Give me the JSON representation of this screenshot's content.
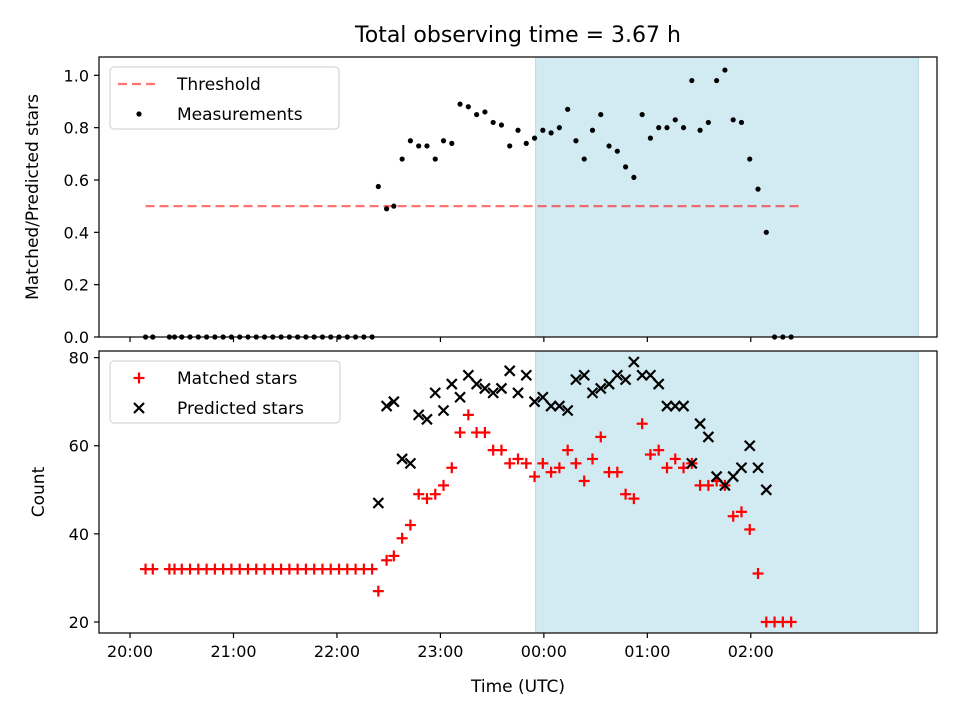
{
  "title": "Total observing time = 3.67 h",
  "xlabel": "Time (UTC)",
  "colors": {
    "band": "#add8e6",
    "threshold": "#ff0000",
    "measurements": "#000000",
    "matched": "#ff0000",
    "predicted": "#000000"
  },
  "chart_data": [
    {
      "type": "scatter",
      "ylabel": "Matched/Predicted stars",
      "ylim": [
        0.0,
        1.07
      ],
      "xlim": [
        -0.3,
        7.8
      ],
      "yticks": [
        0.0,
        0.2,
        0.4,
        0.6,
        0.8,
        1.0
      ],
      "ytick_labels": [
        "0.0",
        "0.2",
        "0.4",
        "0.6",
        "0.8",
        "1.0"
      ],
      "legend": {
        "placement": "upper-left",
        "entries": [
          "Threshold",
          "Measurements"
        ]
      },
      "shaded_band": [
        3.92,
        7.62
      ],
      "threshold": {
        "name": "Threshold",
        "value": 0.5,
        "x_range": [
          0.15,
          6.5
        ]
      },
      "series": [
        {
          "name": "Measurements",
          "points": [
            [
              0.15,
              0
            ],
            [
              0.22,
              0
            ],
            [
              0.38,
              0
            ],
            [
              0.43,
              0
            ],
            [
              0.5,
              0
            ],
            [
              0.58,
              0
            ],
            [
              0.66,
              0
            ],
            [
              0.74,
              0
            ],
            [
              0.82,
              0
            ],
            [
              0.9,
              0
            ],
            [
              0.98,
              0
            ],
            [
              1.06,
              0
            ],
            [
              1.14,
              0
            ],
            [
              1.22,
              0
            ],
            [
              1.3,
              0
            ],
            [
              1.38,
              0
            ],
            [
              1.46,
              0
            ],
            [
              1.54,
              0
            ],
            [
              1.62,
              0
            ],
            [
              1.7,
              0
            ],
            [
              1.78,
              0
            ],
            [
              1.86,
              0
            ],
            [
              1.94,
              0
            ],
            [
              2.02,
              0
            ],
            [
              2.1,
              0
            ],
            [
              2.18,
              0
            ],
            [
              2.26,
              0
            ],
            [
              2.34,
              0
            ],
            [
              2.4,
              0.575
            ],
            [
              2.48,
              0.49
            ],
            [
              2.55,
              0.5
            ],
            [
              2.63,
              0.68
            ],
            [
              2.71,
              0.75
            ],
            [
              2.79,
              0.73
            ],
            [
              2.87,
              0.73
            ],
            [
              2.95,
              0.68
            ],
            [
              3.03,
              0.75
            ],
            [
              3.11,
              0.74
            ],
            [
              3.19,
              0.89
            ],
            [
              3.27,
              0.88
            ],
            [
              3.35,
              0.85
            ],
            [
              3.43,
              0.86
            ],
            [
              3.51,
              0.82
            ],
            [
              3.59,
              0.81
            ],
            [
              3.67,
              0.73
            ],
            [
              3.75,
              0.79
            ],
            [
              3.83,
              0.74
            ],
            [
              3.91,
              0.76
            ],
            [
              3.99,
              0.79
            ],
            [
              4.07,
              0.78
            ],
            [
              4.15,
              0.8
            ],
            [
              4.23,
              0.87
            ],
            [
              4.31,
              0.75
            ],
            [
              4.39,
              0.68
            ],
            [
              4.47,
              0.79
            ],
            [
              4.55,
              0.85
            ],
            [
              4.63,
              0.73
            ],
            [
              4.71,
              0.71
            ],
            [
              4.79,
              0.65
            ],
            [
              4.87,
              0.61
            ],
            [
              4.95,
              0.85
            ],
            [
              5.03,
              0.76
            ],
            [
              5.11,
              0.8
            ],
            [
              5.19,
              0.8
            ],
            [
              5.27,
              0.83
            ],
            [
              5.35,
              0.8
            ],
            [
              5.43,
              0.98
            ],
            [
              5.51,
              0.79
            ],
            [
              5.59,
              0.82
            ],
            [
              5.67,
              0.98
            ],
            [
              5.75,
              1.02
            ],
            [
              5.83,
              0.83
            ],
            [
              5.91,
              0.82
            ],
            [
              5.99,
              0.68
            ],
            [
              6.07,
              0.565
            ],
            [
              6.15,
              0.4
            ],
            [
              6.23,
              0
            ],
            [
              6.31,
              0
            ],
            [
              6.39,
              0
            ]
          ]
        }
      ]
    },
    {
      "type": "scatter",
      "ylabel": "Count",
      "ylim": [
        17.5,
        81.5
      ],
      "xlim": [
        -0.3,
        7.8
      ],
      "yticks": [
        20,
        40,
        60,
        80
      ],
      "ytick_labels": [
        "20",
        "40",
        "60",
        "80"
      ],
      "xticks": [
        0,
        1,
        2,
        3,
        4,
        5,
        6
      ],
      "xtick_labels": [
        "20:00",
        "21:00",
        "22:00",
        "23:00",
        "00:00",
        "01:00",
        "02:00"
      ],
      "legend": {
        "placement": "upper-left",
        "entries": [
          "Matched stars",
          "Predicted stars"
        ]
      },
      "shaded_band": [
        3.92,
        7.62
      ],
      "series": [
        {
          "name": "Matched stars",
          "marker": "plus",
          "points": [
            [
              0.15,
              32
            ],
            [
              0.22,
              32
            ],
            [
              0.38,
              32
            ],
            [
              0.43,
              32
            ],
            [
              0.5,
              32
            ],
            [
              0.58,
              32
            ],
            [
              0.66,
              32
            ],
            [
              0.74,
              32
            ],
            [
              0.82,
              32
            ],
            [
              0.9,
              32
            ],
            [
              0.98,
              32
            ],
            [
              1.06,
              32
            ],
            [
              1.14,
              32
            ],
            [
              1.22,
              32
            ],
            [
              1.3,
              32
            ],
            [
              1.38,
              32
            ],
            [
              1.46,
              32
            ],
            [
              1.54,
              32
            ],
            [
              1.62,
              32
            ],
            [
              1.7,
              32
            ],
            [
              1.78,
              32
            ],
            [
              1.86,
              32
            ],
            [
              1.94,
              32
            ],
            [
              2.02,
              32
            ],
            [
              2.1,
              32
            ],
            [
              2.18,
              32
            ],
            [
              2.26,
              32
            ],
            [
              2.34,
              32
            ],
            [
              2.4,
              27
            ],
            [
              2.48,
              34
            ],
            [
              2.55,
              35
            ],
            [
              2.63,
              39
            ],
            [
              2.71,
              42
            ],
            [
              2.79,
              49
            ],
            [
              2.87,
              48
            ],
            [
              2.95,
              49
            ],
            [
              3.03,
              51
            ],
            [
              3.11,
              55
            ],
            [
              3.19,
              63
            ],
            [
              3.27,
              67
            ],
            [
              3.35,
              63
            ],
            [
              3.43,
              63
            ],
            [
              3.51,
              59
            ],
            [
              3.59,
              59
            ],
            [
              3.67,
              56
            ],
            [
              3.75,
              57
            ],
            [
              3.83,
              56
            ],
            [
              3.91,
              53
            ],
            [
              3.99,
              56
            ],
            [
              4.07,
              54
            ],
            [
              4.15,
              55
            ],
            [
              4.23,
              59
            ],
            [
              4.31,
              56
            ],
            [
              4.39,
              52
            ],
            [
              4.47,
              57
            ],
            [
              4.55,
              62
            ],
            [
              4.63,
              54
            ],
            [
              4.71,
              54
            ],
            [
              4.79,
              49
            ],
            [
              4.87,
              48
            ],
            [
              4.95,
              65
            ],
            [
              5.03,
              58
            ],
            [
              5.11,
              59
            ],
            [
              5.19,
              55
            ],
            [
              5.27,
              57
            ],
            [
              5.35,
              55
            ],
            [
              5.43,
              56
            ],
            [
              5.51,
              51
            ],
            [
              5.59,
              51
            ],
            [
              5.67,
              52
            ],
            [
              5.75,
              51
            ],
            [
              5.83,
              44
            ],
            [
              5.91,
              45
            ],
            [
              5.99,
              41
            ],
            [
              6.07,
              31
            ],
            [
              6.15,
              20
            ],
            [
              6.23,
              20
            ],
            [
              6.31,
              20
            ],
            [
              6.39,
              20
            ]
          ]
        },
        {
          "name": "Predicted stars",
          "marker": "x",
          "points": [
            [
              2.4,
              47
            ],
            [
              2.48,
              69
            ],
            [
              2.55,
              70
            ],
            [
              2.63,
              57
            ],
            [
              2.71,
              56
            ],
            [
              2.79,
              67
            ],
            [
              2.87,
              66
            ],
            [
              2.95,
              72
            ],
            [
              3.03,
              68
            ],
            [
              3.11,
              74
            ],
            [
              3.19,
              71
            ],
            [
              3.27,
              76
            ],
            [
              3.35,
              74
            ],
            [
              3.43,
              73
            ],
            [
              3.51,
              72
            ],
            [
              3.59,
              73
            ],
            [
              3.67,
              77
            ],
            [
              3.75,
              72
            ],
            [
              3.83,
              76
            ],
            [
              3.91,
              70
            ],
            [
              3.99,
              71
            ],
            [
              4.07,
              69
            ],
            [
              4.15,
              69
            ],
            [
              4.23,
              68
            ],
            [
              4.31,
              75
            ],
            [
              4.39,
              76
            ],
            [
              4.47,
              72
            ],
            [
              4.55,
              73
            ],
            [
              4.63,
              74
            ],
            [
              4.71,
              76
            ],
            [
              4.79,
              75
            ],
            [
              4.87,
              79
            ],
            [
              4.95,
              76
            ],
            [
              5.03,
              76
            ],
            [
              5.11,
              74
            ],
            [
              5.19,
              69
            ],
            [
              5.27,
              69
            ],
            [
              5.35,
              69
            ],
            [
              5.43,
              56
            ],
            [
              5.51,
              65
            ],
            [
              5.59,
              62
            ],
            [
              5.67,
              53
            ],
            [
              5.75,
              51
            ],
            [
              5.83,
              53
            ],
            [
              5.91,
              55
            ],
            [
              5.99,
              60
            ],
            [
              6.07,
              55
            ],
            [
              6.15,
              50
            ]
          ]
        }
      ]
    }
  ]
}
